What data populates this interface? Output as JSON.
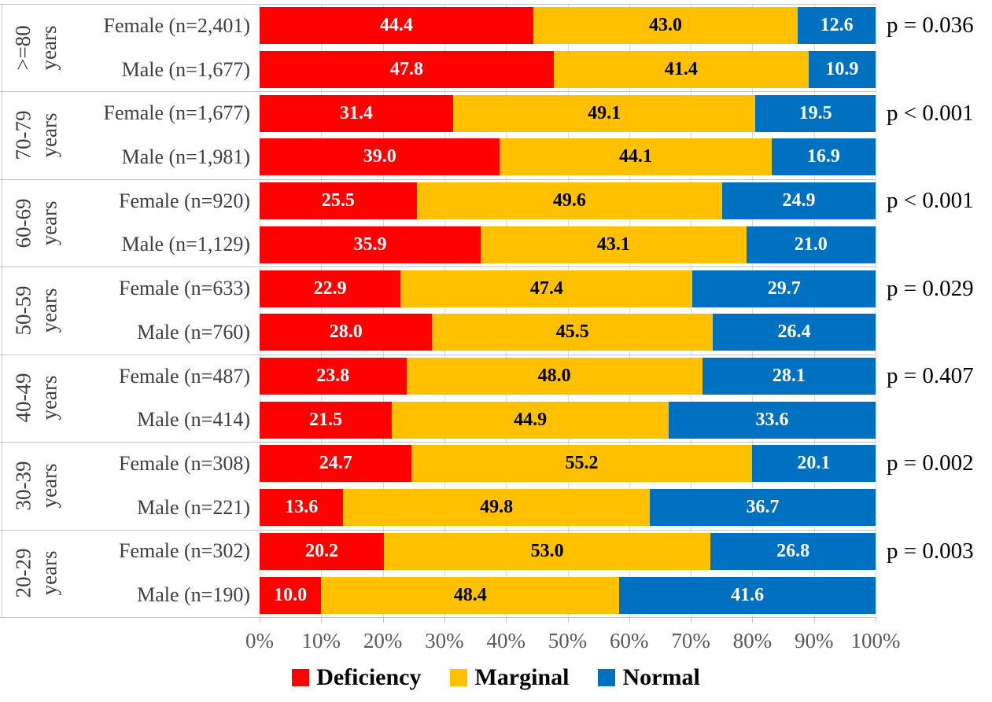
{
  "chart_data": {
    "type": "bar",
    "stacked": true,
    "orientation": "horizontal",
    "title": "",
    "xlabel": "",
    "ylabel": "",
    "xlim": [
      0,
      100
    ],
    "grid": true,
    "legend_position": "bottom",
    "x_ticks": [
      "0%",
      "10%",
      "20%",
      "30%",
      "40%",
      "50%",
      "60%",
      "70%",
      "80%",
      "90%",
      "100%"
    ],
    "age_unit": "years",
    "legend": [
      {
        "label": "Deficiency",
        "color": "#FF0000",
        "value_text_color": "#FFFFFF"
      },
      {
        "label": "Marginal",
        "color": "#FFC000",
        "value_text_color": "#000000"
      },
      {
        "label": "Normal",
        "color": "#0070C0",
        "value_text_color": "#FFFFFF"
      }
    ],
    "groups": [
      {
        "age": ">=80",
        "p": "p = 0.036",
        "rows": [
          {
            "label": "Female (n=2,401)",
            "values": [
              44.4,
              43.0,
              12.6
            ]
          },
          {
            "label": "Male (n=1,677)",
            "values": [
              47.8,
              41.4,
              10.9
            ]
          }
        ]
      },
      {
        "age": "70-79",
        "p": "p < 0.001",
        "rows": [
          {
            "label": "Female (n=1,677)",
            "values": [
              31.4,
              49.1,
              19.5
            ]
          },
          {
            "label": "Male (n=1,981)",
            "values": [
              39.0,
              44.1,
              16.9
            ]
          }
        ]
      },
      {
        "age": "60-69",
        "p": "p < 0.001",
        "rows": [
          {
            "label": "Female (n=920)",
            "values": [
              25.5,
              49.6,
              24.9
            ]
          },
          {
            "label": "Male (n=1,129)",
            "values": [
              35.9,
              43.1,
              21.0
            ]
          }
        ]
      },
      {
        "age": "50-59",
        "p": "p = 0.029",
        "rows": [
          {
            "label": "Female (n=633)",
            "values": [
              22.9,
              47.4,
              29.7
            ]
          },
          {
            "label": "Male (n=760)",
            "values": [
              28.0,
              45.5,
              26.4
            ]
          }
        ]
      },
      {
        "age": "40-49",
        "p": "p = 0.407",
        "rows": [
          {
            "label": "Female (n=487)",
            "values": [
              23.8,
              48.0,
              28.1
            ]
          },
          {
            "label": "Male (n=414)",
            "values": [
              21.5,
              44.9,
              33.6
            ]
          }
        ]
      },
      {
        "age": "30-39",
        "p": "p = 0.002",
        "rows": [
          {
            "label": "Female (n=308)",
            "values": [
              24.7,
              55.2,
              20.1
            ]
          },
          {
            "label": "Male (n=221)",
            "values": [
              13.6,
              49.8,
              36.7
            ]
          }
        ]
      },
      {
        "age": "20-29",
        "p": "p = 0.003",
        "rows": [
          {
            "label": "Female (n=302)",
            "values": [
              20.2,
              53.0,
              26.8
            ]
          },
          {
            "label": "Male (n=190)",
            "values": [
              10.0,
              48.4,
              41.6
            ]
          }
        ]
      }
    ]
  }
}
